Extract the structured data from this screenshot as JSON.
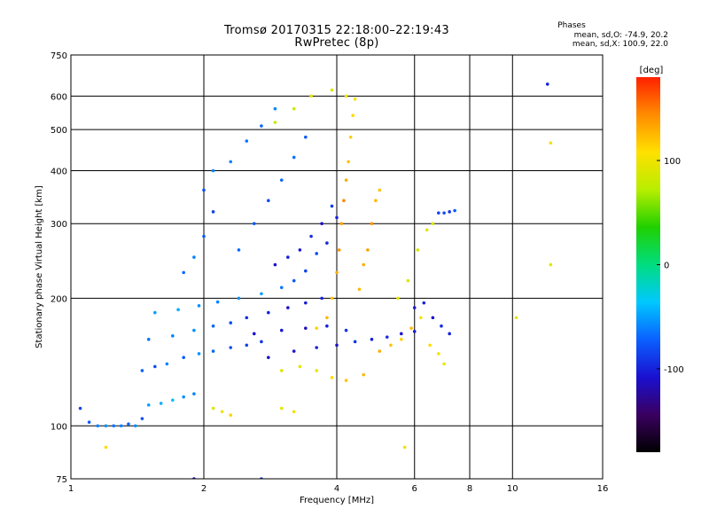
{
  "chart_data": {
    "type": "scatter",
    "title": "Tromsø 20170315 22:18:00–22:19:43",
    "subtitle": "RwPretec (8p)",
    "xlabel": "Frequency [MHz]",
    "ylabel": "Stationary phase Virtual Height [km]",
    "x_scale": "log",
    "y_scale": "log",
    "xlim": [
      1,
      16
    ],
    "ylim": [
      75,
      750
    ],
    "x_ticks": [
      1,
      2,
      4,
      6,
      8,
      10,
      16
    ],
    "x_tick_labels": [
      "1",
      "2",
      "4",
      "6",
      "8",
      "10",
      "16"
    ],
    "y_ticks": [
      75,
      100,
      200,
      300,
      400,
      500,
      600,
      750
    ],
    "y_tick_labels": [
      "75",
      "100",
      "200",
      "300",
      "400",
      "500",
      "600",
      "750"
    ],
    "grid": true,
    "colorbar": {
      "label": "[deg]",
      "range": [
        -180,
        180
      ],
      "ticks": [
        100,
        0,
        -100
      ],
      "tick_labels": [
        "100",
        "0",
        "-100"
      ],
      "colors": [
        "#000000",
        "#3a0060",
        "#1a10d0",
        "#0a60ff",
        "#00c8ff",
        "#00dd80",
        "#20d000",
        "#b8ee00",
        "#ffe000",
        "#ff8c00",
        "#ff2000"
      ]
    },
    "stats": {
      "heading": "Phases",
      "line1": "mean, sd,O: -74.9, 20.2",
      "line2": "mean, sd,X: 100.9, 22.0"
    },
    "series": [
      {
        "points": [
          [
            1.05,
            110,
            -85
          ],
          [
            1.1,
            102,
            -75
          ],
          [
            1.15,
            100,
            -60
          ],
          [
            1.2,
            100,
            -55
          ],
          [
            1.25,
            100,
            -65
          ],
          [
            1.3,
            100,
            -60
          ],
          [
            1.35,
            101,
            -70
          ],
          [
            1.4,
            100,
            -55
          ],
          [
            1.45,
            104,
            -80
          ],
          [
            1.5,
            112,
            -50
          ],
          [
            1.6,
            113,
            -45
          ],
          [
            1.7,
            115,
            -40
          ],
          [
            1.8,
            117,
            -55
          ],
          [
            1.9,
            119,
            -60
          ],
          [
            1.45,
            135,
            -70
          ],
          [
            1.55,
            138,
            -80
          ],
          [
            1.65,
            140,
            -60
          ],
          [
            1.8,
            145,
            -75
          ],
          [
            1.95,
            148,
            -55
          ],
          [
            2.1,
            150,
            -70
          ],
          [
            2.3,
            153,
            -80
          ],
          [
            2.5,
            155,
            -85
          ],
          [
            2.7,
            158,
            -90
          ],
          [
            1.5,
            160,
            -65
          ],
          [
            1.7,
            163,
            -60
          ],
          [
            1.9,
            168,
            -55
          ],
          [
            2.1,
            172,
            -70
          ],
          [
            2.3,
            175,
            -80
          ],
          [
            1.55,
            185,
            -50
          ],
          [
            1.75,
            188,
            -45
          ],
          [
            1.95,
            192,
            -55
          ],
          [
            2.15,
            196,
            -60
          ],
          [
            2.4,
            200,
            -55
          ],
          [
            2.7,
            205,
            -50
          ],
          [
            3.0,
            212,
            -65
          ],
          [
            3.2,
            220,
            -75
          ],
          [
            3.4,
            232,
            -85
          ],
          [
            3.6,
            255,
            -80
          ],
          [
            3.8,
            270,
            -95
          ],
          [
            4.0,
            310,
            -100
          ],
          [
            1.8,
            230,
            -70
          ],
          [
            1.9,
            250,
            -60
          ],
          [
            2.0,
            280,
            -75
          ],
          [
            2.1,
            320,
            -85
          ],
          [
            2.0,
            360,
            -80
          ],
          [
            2.1,
            400,
            -60
          ],
          [
            2.5,
            180,
            -95
          ],
          [
            2.8,
            185,
            -100
          ],
          [
            3.1,
            190,
            -110
          ],
          [
            3.4,
            195,
            -105
          ],
          [
            3.7,
            200,
            -100
          ],
          [
            2.6,
            165,
            -110
          ],
          [
            3.0,
            168,
            -105
          ],
          [
            3.4,
            170,
            -115
          ],
          [
            3.8,
            172,
            -100
          ],
          [
            4.2,
            168,
            -90
          ],
          [
            2.8,
            145,
            -110
          ],
          [
            3.2,
            150,
            -105
          ],
          [
            3.6,
            153,
            -100
          ],
          [
            4.0,
            155,
            -110
          ],
          [
            4.4,
            158,
            -90
          ],
          [
            4.8,
            160,
            -100
          ],
          [
            5.2,
            162,
            -95
          ],
          [
            5.6,
            165,
            -110
          ],
          [
            6.0,
            167,
            -105
          ],
          [
            2.9,
            240,
            -110
          ],
          [
            3.1,
            250,
            -100
          ],
          [
            3.3,
            260,
            -105
          ],
          [
            3.5,
            280,
            -95
          ],
          [
            3.7,
            300,
            -110
          ],
          [
            3.9,
            330,
            -90
          ],
          [
            2.4,
            260,
            -70
          ],
          [
            2.6,
            300,
            -75
          ],
          [
            2.8,
            340,
            -80
          ],
          [
            3.0,
            380,
            -70
          ],
          [
            3.2,
            430,
            -65
          ],
          [
            3.4,
            480,
            -75
          ],
          [
            2.3,
            420,
            -60
          ],
          [
            2.5,
            470,
            -65
          ],
          [
            2.7,
            510,
            -70
          ],
          [
            2.9,
            560,
            -60
          ],
          [
            6.0,
            190,
            -105
          ],
          [
            6.3,
            195,
            -100
          ],
          [
            6.6,
            180,
            -110
          ],
          [
            6.9,
            172,
            -95
          ],
          [
            7.2,
            165,
            -100
          ],
          [
            6.8,
            318,
            -85
          ],
          [
            7.0,
            318,
            -80
          ],
          [
            7.2,
            320,
            -90
          ],
          [
            7.4,
            322,
            -75
          ],
          [
            12.0,
            640,
            -100
          ],
          [
            2.7,
            75,
            -90
          ],
          [
            1.9,
            75,
            -110
          ],
          [
            3.6,
            170,
            115
          ],
          [
            3.8,
            180,
            125
          ],
          [
            3.9,
            200,
            120
          ],
          [
            4.0,
            230,
            130
          ],
          [
            4.05,
            260,
            140
          ],
          [
            4.1,
            300,
            135
          ],
          [
            4.15,
            340,
            145
          ],
          [
            4.2,
            380,
            130
          ],
          [
            4.25,
            420,
            120
          ],
          [
            4.3,
            480,
            115
          ],
          [
            4.35,
            540,
            110
          ],
          [
            4.4,
            590,
            105
          ],
          [
            4.5,
            210,
            125
          ],
          [
            4.6,
            240,
            130
          ],
          [
            4.7,
            260,
            135
          ],
          [
            4.8,
            300,
            140
          ],
          [
            4.9,
            340,
            125
          ],
          [
            5.0,
            360,
            120
          ],
          [
            5.0,
            150,
            130
          ],
          [
            5.3,
            155,
            120
          ],
          [
            5.6,
            160,
            115
          ],
          [
            5.9,
            170,
            125
          ],
          [
            6.2,
            180,
            105
          ],
          [
            6.5,
            155,
            110
          ],
          [
            6.8,
            148,
            105
          ],
          [
            7.0,
            140,
            100
          ],
          [
            3.0,
            135,
            90
          ],
          [
            3.3,
            138,
            95
          ],
          [
            3.6,
            135,
            100
          ],
          [
            3.9,
            130,
            110
          ],
          [
            4.2,
            128,
            120
          ],
          [
            4.6,
            132,
            125
          ],
          [
            2.1,
            110,
            90
          ],
          [
            2.2,
            108,
            100
          ],
          [
            2.3,
            106,
            115
          ],
          [
            3.0,
            110,
            95
          ],
          [
            3.2,
            108,
            100
          ],
          [
            5.5,
            200,
            95
          ],
          [
            5.8,
            220,
            90
          ],
          [
            6.1,
            260,
            85
          ],
          [
            6.4,
            290,
            95
          ],
          [
            6.6,
            300,
            90
          ],
          [
            2.9,
            520,
            75
          ],
          [
            3.2,
            560,
            80
          ],
          [
            3.5,
            600,
            95
          ],
          [
            3.9,
            620,
            90
          ],
          [
            4.2,
            600,
            100
          ],
          [
            12.2,
            465,
            105
          ],
          [
            12.2,
            240,
            95
          ],
          [
            1.2,
            89,
            110
          ],
          [
            5.7,
            89,
            100
          ],
          [
            10.2,
            180,
            95
          ]
        ]
      }
    ]
  }
}
